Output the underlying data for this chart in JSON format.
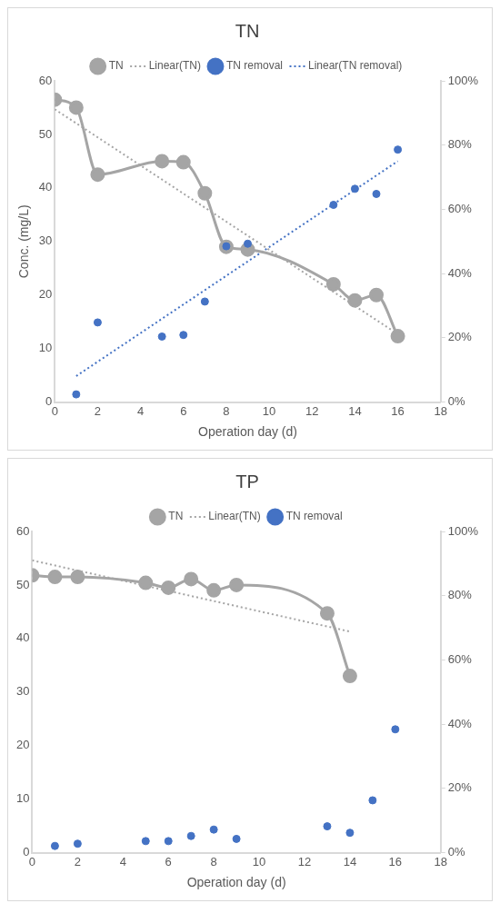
{
  "chart_data": [
    {
      "type": "line",
      "title": "TN",
      "xlabel": "Operation day (d)",
      "ylabel": "Conc. (mg/L)",
      "xlim": [
        0,
        18
      ],
      "xticks": [
        0,
        2,
        4,
        6,
        8,
        10,
        12,
        14,
        16,
        18
      ],
      "ylim": [
        0,
        60
      ],
      "yticks": [
        0,
        10,
        20,
        30,
        40,
        50,
        60
      ],
      "y2lim": [
        0,
        100
      ],
      "y2ticks": [
        {
          "value": 0,
          "label": "0%"
        },
        {
          "value": 20,
          "label": "20%"
        },
        {
          "value": 40,
          "label": "40%"
        },
        {
          "value": 60,
          "label": "60%"
        },
        {
          "value": 80,
          "label": "80%"
        },
        {
          "value": 100,
          "label": "100%"
        }
      ],
      "grid": false,
      "legend": "top",
      "series": [
        {
          "name": "TN",
          "type": "line",
          "color": "#a5a5a5",
          "marker": "circle",
          "line_style": "solid",
          "x": [
            0,
            1,
            2,
            5,
            6,
            7,
            8,
            9,
            13,
            14,
            15,
            16
          ],
          "values": [
            56.5,
            55,
            42.5,
            45,
            44.8,
            39,
            29,
            28.5,
            22,
            19,
            20,
            12.3
          ]
        },
        {
          "name": "Linear(TN)",
          "type": "line",
          "color": "#a5a5a5",
          "marker": "none",
          "line_style": "dotted",
          "x": [
            0,
            16
          ],
          "values": [
            54.7,
            12.7
          ]
        },
        {
          "name": "TN removal",
          "type": "scatter",
          "axis": "y2",
          "color": "#4472c4",
          "marker": "circle",
          "x": [
            1,
            2,
            5,
            6,
            7,
            8,
            9,
            13,
            14,
            15,
            16
          ],
          "values": [
            2.4,
            24.8,
            20.4,
            20.9,
            31.3,
            48.5,
            49.3,
            61.4,
            66.4,
            64.8,
            78.6
          ]
        },
        {
          "name": "Linear(TN removal)",
          "type": "line",
          "axis": "y2",
          "color": "#4472c4",
          "marker": "none",
          "line_style": "dotted",
          "x": [
            1,
            16
          ],
          "values": [
            8.1,
            75
          ]
        }
      ]
    },
    {
      "type": "line",
      "title": "TP",
      "xlabel": "Operation day (d)",
      "xlim": [
        0,
        18
      ],
      "xticks": [
        0,
        2,
        4,
        6,
        8,
        10,
        12,
        14,
        16,
        18
      ],
      "ylim": [
        0,
        60
      ],
      "yticks": [
        0,
        10,
        20,
        30,
        40,
        50,
        60
      ],
      "y2lim": [
        0,
        100
      ],
      "y2ticks": [
        {
          "value": 0,
          "label": "0%"
        },
        {
          "value": 20,
          "label": "20%"
        },
        {
          "value": 40,
          "label": "40%"
        },
        {
          "value": 60,
          "label": "60%"
        },
        {
          "value": 80,
          "label": "80%"
        },
        {
          "value": 100,
          "label": "100%"
        }
      ],
      "grid": false,
      "legend": "top",
      "series": [
        {
          "name": "TN",
          "type": "line",
          "color": "#a5a5a5",
          "marker": "circle",
          "line_style": "solid",
          "x": [
            0,
            1,
            2,
            5,
            6,
            7,
            8,
            9,
            13,
            14
          ],
          "values": [
            51.8,
            51.5,
            51.5,
            50.4,
            49.5,
            51.1,
            49,
            50,
            44.7,
            33
          ]
        },
        {
          "name": "Linear(TN)",
          "type": "line",
          "color": "#a5a5a5",
          "marker": "none",
          "line_style": "dotted",
          "x": [
            0,
            14
          ],
          "values": [
            54.6,
            41.3
          ]
        },
        {
          "name": "TN removal",
          "type": "scatter",
          "axis": "y2",
          "color": "#4472c4",
          "marker": "circle",
          "x": [
            1,
            2,
            5,
            6,
            7,
            8,
            9,
            13,
            14,
            15,
            16
          ],
          "values": [
            2.1,
            2.8,
            3.6,
            3.6,
            5.2,
            7.2,
            4.3,
            8.2,
            6.2,
            16.3,
            38.4
          ]
        }
      ]
    }
  ]
}
